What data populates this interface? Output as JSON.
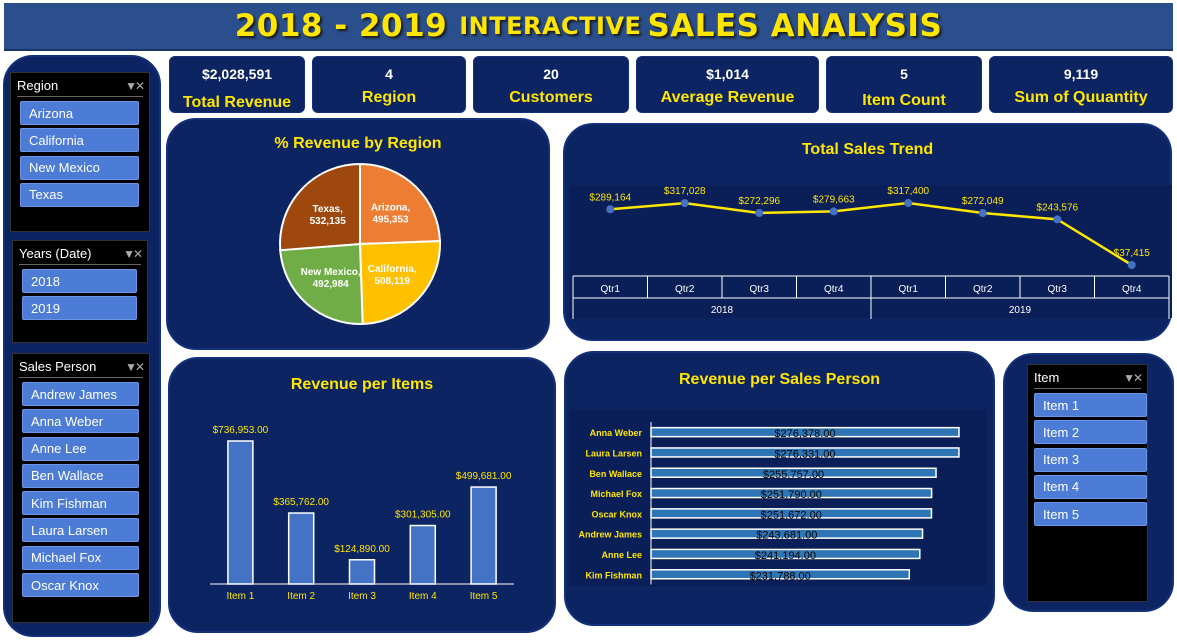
{
  "header": {
    "title_years": "2018 - 2019",
    "title_interactive": "INTERACTIVE",
    "title_main": "SALES ANALYSIS"
  },
  "kpis": [
    {
      "value": "$2,028,591",
      "label": "Total Revenue"
    },
    {
      "value": "4",
      "label": "Region"
    },
    {
      "value": "20",
      "label": "Customers"
    },
    {
      "value": "$1,014",
      "label": "Average Revenue"
    },
    {
      "value": "5",
      "label": "Item Count"
    },
    {
      "value": "9,119",
      "label": "Sum of Quuantity"
    }
  ],
  "slicers": {
    "region": {
      "title": "Region",
      "items": [
        "Arizona",
        "California",
        "New Mexico",
        "Texas"
      ]
    },
    "years": {
      "title": "Years (Date)",
      "items": [
        "2018",
        "2019"
      ]
    },
    "sales_person": {
      "title": "Sales Person",
      "items": [
        "Andrew James",
        "Anna Weber",
        "Anne Lee",
        "Ben Wallace",
        "Kim Fishman",
        "Laura Larsen",
        "Michael Fox",
        "Oscar Knox"
      ]
    },
    "item": {
      "title": "Item",
      "items": [
        "Item 1",
        "Item 2",
        "Item 3",
        "Item 4",
        "Item 5"
      ]
    }
  },
  "colors": {
    "accent_yellow": "#ffe600",
    "panel_navy": "#0c2461",
    "slicer_blue": "#4d7cd6",
    "bar_blue": "#4472c4",
    "hbar_teal": "#2e75b6",
    "pie_arizona": "#ed7d31",
    "pie_california": "#ffc000",
    "pie_new_mexico": "#70ad47",
    "pie_texas": "#9e480e"
  },
  "chart_data": [
    {
      "type": "pie",
      "title": "% Revenue by Region",
      "labels": [
        "Arizona",
        "California",
        "New Mexico",
        "Texas"
      ],
      "values": [
        495353,
        508119,
        492984,
        532135
      ],
      "value_labels": [
        "495,353",
        "508,119",
        "492,984",
        "532,135"
      ]
    },
    {
      "type": "line",
      "title": "Total Sales Trend",
      "categories": [
        "Qtr1",
        "Qtr2",
        "Qtr3",
        "Qtr4",
        "Qtr1",
        "Qtr2",
        "Qtr3",
        "Qtr4"
      ],
      "groups": [
        {
          "label": "2018",
          "span": 4
        },
        {
          "label": "2019",
          "span": 4
        }
      ],
      "values": [
        289164,
        317028,
        272296,
        279663,
        317400,
        272049,
        243576,
        37415
      ],
      "value_labels": [
        "$289,164",
        "$317,028",
        "$272,296",
        "$279,663",
        "$317,400",
        "$272,049",
        "$243,576",
        "$37,415"
      ],
      "grid": false
    },
    {
      "type": "bar",
      "title": "Revenue per Items",
      "categories": [
        "Item 1",
        "Item 2",
        "Item 3",
        "Item 4",
        "Item 5"
      ],
      "values": [
        736953,
        365762,
        124890,
        301305,
        499681
      ],
      "value_labels": [
        "$736,953.00",
        "$365,762.00",
        "$124,890.00",
        "$301,305.00",
        "$499,681.00"
      ],
      "grid": false
    },
    {
      "type": "bar",
      "orientation": "horizontal",
      "title": "Revenue per Sales Person",
      "categories": [
        "Anna Weber",
        "Laura Larsen",
        "Ben Wallace",
        "Michael Fox",
        "Oscar Knox",
        "Andrew James",
        "Anne Lee",
        "Kim Fishman"
      ],
      "values": [
        276378,
        276331,
        255757,
        251790,
        251672,
        243681,
        241194,
        231788
      ],
      "value_labels": [
        "$276,378.00",
        "$276,331.00",
        "$255,757.00",
        "$251,790.00",
        "$251,672.00",
        "$243,681.00",
        "$241,194.00",
        "$231,788.00"
      ],
      "grid": false
    }
  ]
}
